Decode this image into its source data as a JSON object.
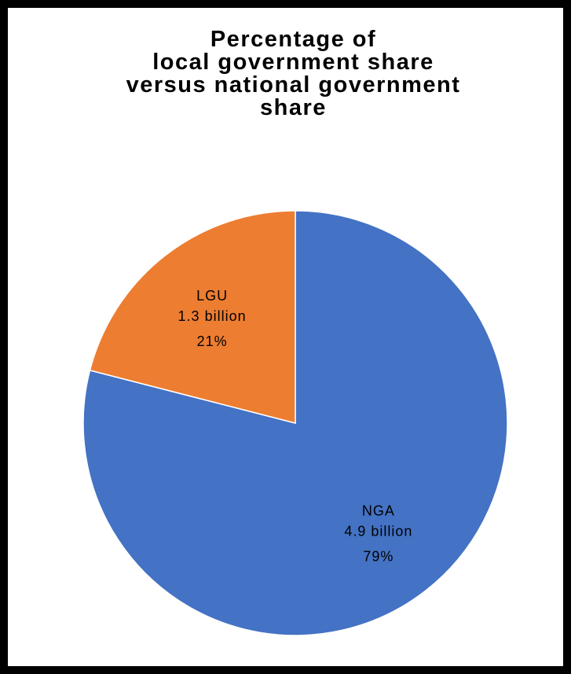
{
  "chart_data": {
    "type": "pie",
    "title": "Percentage of\nlocal government share\nversus national government\nshare",
    "categories": [
      "NGA",
      "LGU"
    ],
    "values": [
      79,
      21
    ],
    "value_labels": [
      "79%",
      "21%"
    ],
    "amount_labels": [
      "4.9 billion",
      "1.3 billion"
    ],
    "colors": [
      "#4472c4",
      "#ed7d31"
    ]
  }
}
